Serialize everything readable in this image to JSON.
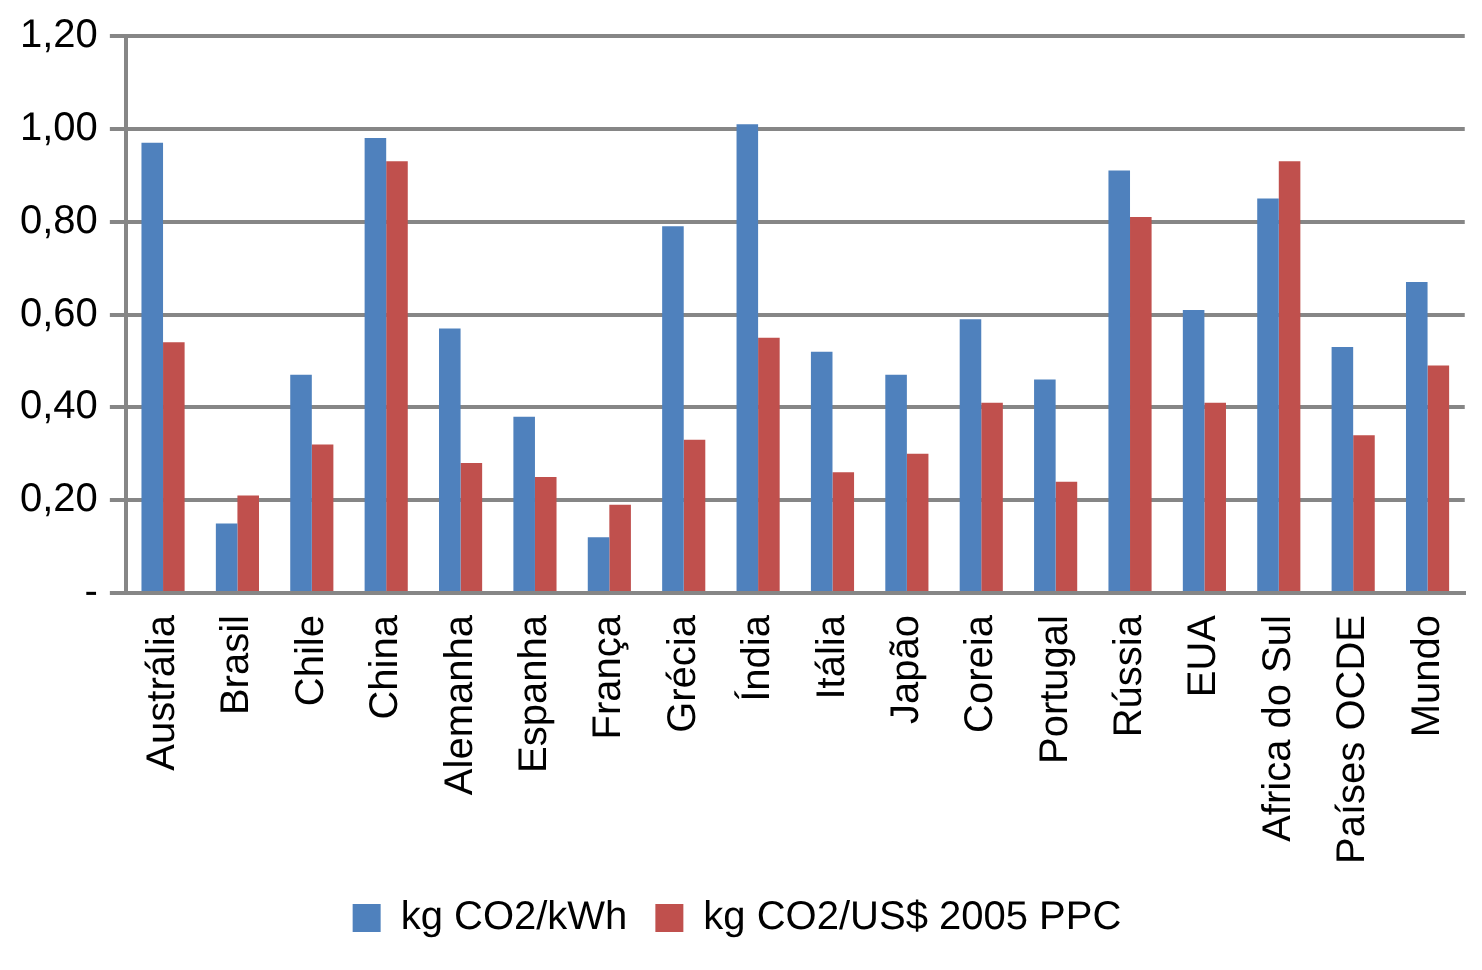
{
  "chart_data": {
    "type": "bar",
    "categories": [
      "Austrália",
      "Brasil",
      "Chile",
      "China",
      "Alemanha",
      "Espanha",
      "França",
      "Grécia",
      "Índia",
      "Itália",
      "Japão",
      "Coreia",
      "Portugal",
      "Rússia",
      "EUA",
      "Africa do Sul",
      "Países OCDE",
      "Mundo"
    ],
    "series": [
      {
        "name": "kg CO2/kWh",
        "color": "#4f81bd",
        "values": [
          0.97,
          0.15,
          0.47,
          0.98,
          0.57,
          0.38,
          0.12,
          0.79,
          1.01,
          0.52,
          0.47,
          0.59,
          0.46,
          0.91,
          0.61,
          0.85,
          0.53,
          0.67
        ]
      },
      {
        "name": "kg CO2/US$ 2005 PPC",
        "color": "#c0504d",
        "values": [
          0.54,
          0.21,
          0.32,
          0.93,
          0.28,
          0.25,
          0.19,
          0.33,
          0.55,
          0.26,
          0.3,
          0.41,
          0.24,
          0.81,
          0.41,
          0.93,
          0.34,
          0.49
        ]
      }
    ],
    "ylim": [
      0,
      1.2
    ],
    "yticks": [
      {
        "value": 0,
        "label": "-"
      },
      {
        "value": 0.2,
        "label": "0,20"
      },
      {
        "value": 0.4,
        "label": "0,40"
      },
      {
        "value": 0.6,
        "label": "0,60"
      },
      {
        "value": 0.8,
        "label": "0,80"
      },
      {
        "value": 1,
        "label": "1,00"
      },
      {
        "value": 1.2,
        "label": "1,20"
      }
    ],
    "grid": "y",
    "legend": "bottom"
  }
}
